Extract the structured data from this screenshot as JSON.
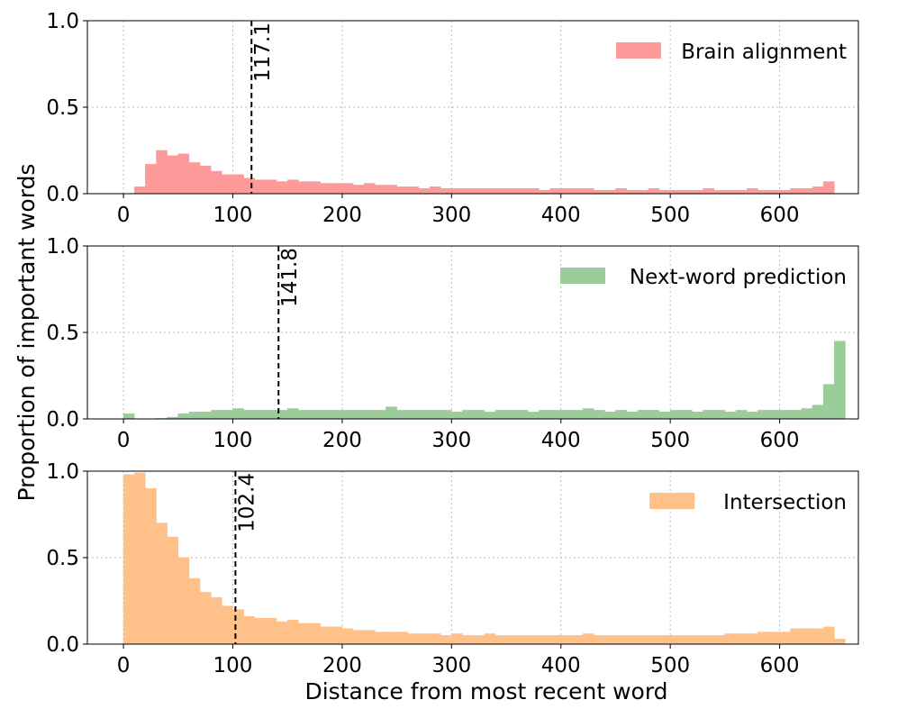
{
  "chart_data": [
    {
      "type": "histogram",
      "name": "Brain alignment",
      "color": "#ff9a9a",
      "bins": [
        0,
        10,
        20,
        30,
        40,
        50,
        60,
        70,
        80,
        90,
        100,
        110,
        120,
        130,
        140,
        150,
        160,
        170,
        180,
        190,
        200,
        210,
        220,
        230,
        240,
        250,
        260,
        270,
        280,
        290,
        300,
        310,
        320,
        330,
        340,
        350,
        360,
        370,
        380,
        390,
        400,
        410,
        420,
        430,
        440,
        450,
        460,
        470,
        480,
        490,
        500,
        510,
        520,
        530,
        540,
        550,
        560,
        570,
        580,
        590,
        600,
        610,
        620,
        630,
        640,
        650,
        660
      ],
      "counts": [
        0,
        0.04,
        0.17,
        0.25,
        0.22,
        0.23,
        0.18,
        0.16,
        0.13,
        0.11,
        0.11,
        0.09,
        0.08,
        0.08,
        0.07,
        0.08,
        0.07,
        0.07,
        0.06,
        0.06,
        0.06,
        0.05,
        0.06,
        0.05,
        0.05,
        0.04,
        0.04,
        0.03,
        0.04,
        0.03,
        0.03,
        0.03,
        0.03,
        0.03,
        0.03,
        0.03,
        0.03,
        0.03,
        0.02,
        0.03,
        0.03,
        0.03,
        0.03,
        0.02,
        0.02,
        0.03,
        0.02,
        0.02,
        0.03,
        0.02,
        0.02,
        0.02,
        0.02,
        0.03,
        0.02,
        0.02,
        0.02,
        0.03,
        0.02,
        0.02,
        0.02,
        0.03,
        0.03,
        0.04,
        0.07,
        0
      ],
      "mean_line": 117.1,
      "xlim": [
        -33,
        672
      ],
      "ylim": [
        0,
        1
      ],
      "xticks": [
        0,
        100,
        200,
        300,
        400,
        500,
        600
      ],
      "yticks": [
        {
          "value": 0,
          "label": "0.0"
        },
        {
          "value": 0.5,
          "label": "0.5"
        },
        {
          "value": 1,
          "label": "1.0"
        }
      ],
      "grid": true,
      "legend": "upper right"
    },
    {
      "type": "histogram",
      "name": "Next-word prediction",
      "color": "#9acd9a",
      "bins": [
        0,
        10,
        20,
        30,
        40,
        50,
        60,
        70,
        80,
        90,
        100,
        110,
        120,
        130,
        140,
        150,
        160,
        170,
        180,
        190,
        200,
        210,
        220,
        230,
        240,
        250,
        260,
        270,
        280,
        290,
        300,
        310,
        320,
        330,
        340,
        350,
        360,
        370,
        380,
        390,
        400,
        410,
        420,
        430,
        440,
        450,
        460,
        470,
        480,
        490,
        500,
        510,
        520,
        530,
        540,
        550,
        560,
        570,
        580,
        590,
        600,
        610,
        620,
        630,
        640,
        650,
        660
      ],
      "counts": [
        0.03,
        0,
        0,
        0.003,
        0.01,
        0.03,
        0.04,
        0.04,
        0.05,
        0.05,
        0.06,
        0.05,
        0.05,
        0.05,
        0.05,
        0.06,
        0.05,
        0.05,
        0.05,
        0.05,
        0.05,
        0.05,
        0.05,
        0.05,
        0.07,
        0.05,
        0.05,
        0.05,
        0.05,
        0.05,
        0.04,
        0.05,
        0.05,
        0.04,
        0.05,
        0.05,
        0.05,
        0.04,
        0.05,
        0.05,
        0.05,
        0.05,
        0.06,
        0.05,
        0.04,
        0.05,
        0.04,
        0.05,
        0.05,
        0.04,
        0.05,
        0.05,
        0.04,
        0.05,
        0.05,
        0.04,
        0.05,
        0.04,
        0.05,
        0.05,
        0.05,
        0.05,
        0.06,
        0.08,
        0.2,
        0.45
      ],
      "mean_line": 141.8,
      "ylabel": "Proportion of important words",
      "xlim": [
        -33,
        672
      ],
      "ylim": [
        0,
        1
      ],
      "xticks": [
        0,
        100,
        200,
        300,
        400,
        500,
        600
      ],
      "yticks": [
        {
          "value": 0,
          "label": "0.0"
        },
        {
          "value": 0.5,
          "label": "0.5"
        },
        {
          "value": 1,
          "label": "1.0"
        }
      ],
      "grid": true,
      "legend": "upper right"
    },
    {
      "type": "histogram",
      "name": "Intersection",
      "color": "#ffc08a",
      "bins": [
        0,
        10,
        20,
        30,
        40,
        50,
        60,
        70,
        80,
        90,
        100,
        110,
        120,
        130,
        140,
        150,
        160,
        170,
        180,
        190,
        200,
        210,
        220,
        230,
        240,
        250,
        260,
        270,
        280,
        290,
        300,
        310,
        320,
        330,
        340,
        350,
        360,
        370,
        380,
        390,
        400,
        410,
        420,
        430,
        440,
        450,
        460,
        470,
        480,
        490,
        500,
        510,
        520,
        530,
        540,
        550,
        560,
        570,
        580,
        590,
        600,
        610,
        620,
        630,
        640,
        650,
        660
      ],
      "counts": [
        0.98,
        0.99,
        0.9,
        0.7,
        0.62,
        0.5,
        0.38,
        0.3,
        0.27,
        0.22,
        0.2,
        0.16,
        0.15,
        0.15,
        0.13,
        0.14,
        0.12,
        0.12,
        0.1,
        0.1,
        0.09,
        0.08,
        0.08,
        0.07,
        0.07,
        0.07,
        0.06,
        0.06,
        0.06,
        0.05,
        0.06,
        0.05,
        0.05,
        0.06,
        0.05,
        0.05,
        0.05,
        0.05,
        0.05,
        0.05,
        0.05,
        0.05,
        0.06,
        0.05,
        0.05,
        0.05,
        0.05,
        0.05,
        0.05,
        0.05,
        0.05,
        0.05,
        0.05,
        0.05,
        0.05,
        0.06,
        0.06,
        0.06,
        0.07,
        0.07,
        0.07,
        0.09,
        0.09,
        0.09,
        0.1,
        0.03
      ],
      "mean_line": 102.4,
      "xlabel": "Distance from most recent word",
      "xlim": [
        -33,
        672
      ],
      "ylim": [
        0,
        1
      ],
      "xticks": [
        0,
        100,
        200,
        300,
        400,
        500,
        600
      ],
      "yticks": [
        {
          "value": 0,
          "label": "0.0"
        },
        {
          "value": 0.5,
          "label": "0.5"
        },
        {
          "value": 1,
          "label": "1.0"
        }
      ],
      "grid": true,
      "legend": "upper right"
    }
  ]
}
